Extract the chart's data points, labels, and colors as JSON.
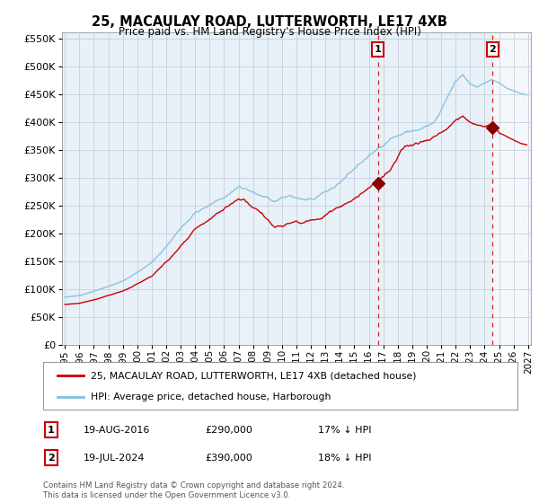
{
  "title": "25, MACAULAY ROAD, LUTTERWORTH, LE17 4XB",
  "subtitle": "Price paid vs. HM Land Registry's House Price Index (HPI)",
  "legend_line1": "25, MACAULAY ROAD, LUTTERWORTH, LE17 4XB (detached house)",
  "legend_line2": "HPI: Average price, detached house, Harborough",
  "annotation1_label": "1",
  "annotation1_date": "19-AUG-2016",
  "annotation1_price": "£290,000",
  "annotation1_note": "17% ↓ HPI",
  "annotation2_label": "2",
  "annotation2_date": "19-JUL-2024",
  "annotation2_price": "£390,000",
  "annotation2_note": "18% ↓ HPI",
  "footer": "Contains HM Land Registry data © Crown copyright and database right 2024.\nThis data is licensed under the Open Government Licence v3.0.",
  "hpi_color": "#7fbfdf",
  "price_color": "#cc0000",
  "marker_color": "#880000",
  "bg_color": "#e8f0f8",
  "grid_color": "#c0c8d8",
  "ylim": [
    0,
    560000
  ],
  "yticks": [
    0,
    50000,
    100000,
    150000,
    200000,
    250000,
    300000,
    350000,
    400000,
    450000,
    500000,
    550000
  ],
  "xstart_year": 1995,
  "xend_year": 2027,
  "sale1_year": 2016.63,
  "sale1_price": 290000,
  "sale2_year": 2024.55,
  "sale2_price": 390000
}
